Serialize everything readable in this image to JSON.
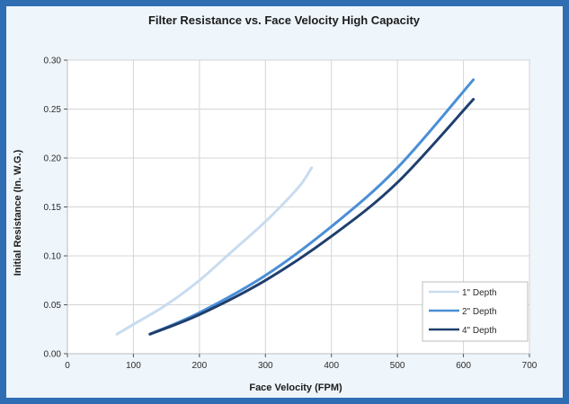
{
  "chart_data": {
    "type": "line",
    "title": "Filter Resistance vs. Face Velocity High Capacity",
    "xlabel": "Face Velocity (FPM)",
    "ylabel": "Initial Resistance (In. W.G.)",
    "xlim": [
      0,
      700
    ],
    "ylim": [
      0,
      0.3
    ],
    "xticks": [
      0,
      100,
      200,
      300,
      400,
      500,
      600,
      700
    ],
    "xtick_labels": [
      "0",
      "100",
      "200",
      "300",
      "400",
      "500",
      "600",
      "700"
    ],
    "yticks": [
      0,
      0.05,
      0.1,
      0.15,
      0.2,
      0.25,
      0.3
    ],
    "ytick_labels": [
      "0.00",
      "0.05",
      "0.10",
      "0.15",
      "0.20",
      "0.25",
      "0.30"
    ],
    "grid": true,
    "legend_position": "bottom-right",
    "series": [
      {
        "name": "1\" Depth",
        "color": "#c8dcef",
        "x": [
          75,
          100,
          150,
          200,
          250,
          300,
          350,
          370
        ],
        "y": [
          0.02,
          0.03,
          0.05,
          0.075,
          0.105,
          0.135,
          0.17,
          0.19
        ]
      },
      {
        "name": "2\" Depth",
        "color": "#4a8fd6",
        "x": [
          125,
          200,
          300,
          400,
          500,
          615
        ],
        "y": [
          0.02,
          0.042,
          0.08,
          0.13,
          0.19,
          0.28
        ]
      },
      {
        "name": "4\" Depth",
        "color": "#1f3f6e",
        "x": [
          125,
          200,
          300,
          400,
          500,
          615
        ],
        "y": [
          0.02,
          0.04,
          0.075,
          0.12,
          0.175,
          0.26
        ]
      }
    ]
  }
}
